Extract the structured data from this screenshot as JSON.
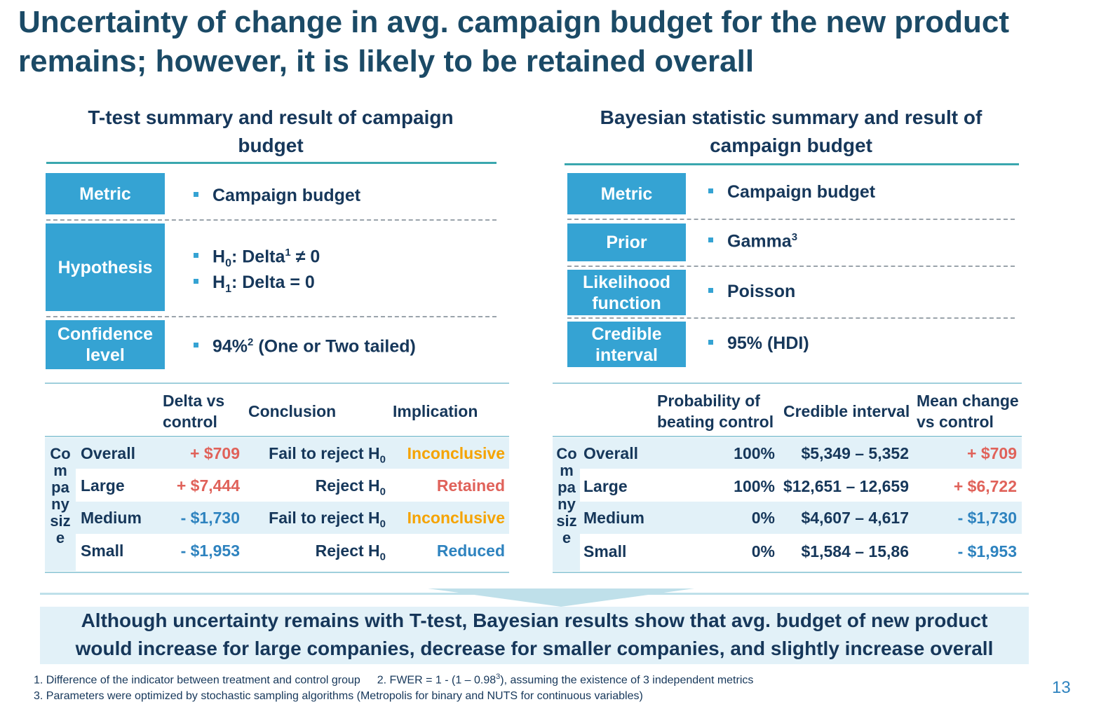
{
  "title_line1": "Uncertainty of change in avg. campaign budget for the new product",
  "title_line2": "remains; however, it is likely to be retained overall",
  "left": {
    "title_line1": "T-test summary and result of campaign",
    "title_line2": "budget",
    "metric_label": "Metric",
    "metric_value": "Campaign budget",
    "hypothesis_label": "Hypothesis",
    "h0": {
      "h": "H",
      "sub": "0",
      "mid": ": Delta",
      "sup": "1",
      "rest": " ≠ 0"
    },
    "h1": {
      "h": "H",
      "sub": "1",
      "rest": ": Delta = 0"
    },
    "conf_label_1": "Confidence",
    "conf_label_2": "level",
    "conf_value": {
      "pre": "94%",
      "sup": "2",
      "post": " (One or Two tailed)"
    },
    "table": {
      "col1_l1": "Delta vs",
      "col1_l2": "control",
      "col2": "Conclusion",
      "col3": "Implication",
      "group_label": [
        "Co",
        "m",
        "pa",
        "ny",
        "siz",
        "e"
      ],
      "rows": [
        {
          "name": "Overall",
          "delta": "+ $709",
          "conclusion": "Fail to reject H",
          "sub": "0",
          "implication": "Inconclusive"
        },
        {
          "name": "Large",
          "delta": "+ $7,444",
          "conclusion": "Reject H",
          "sub": "0",
          "implication": "Retained"
        },
        {
          "name": "Medium",
          "delta": "- $1,730",
          "conclusion": "Fail to reject H",
          "sub": "0",
          "implication": "Inconclusive"
        },
        {
          "name": "Small",
          "delta": "- $1,953",
          "conclusion": "Reject H",
          "sub": "0",
          "implication": "Reduced"
        }
      ]
    }
  },
  "right": {
    "title_line1": "Bayesian statistic summary and result of",
    "title_line2": "campaign budget",
    "metric_label": "Metric",
    "metric_value": "Campaign budget",
    "prior_label": "Prior",
    "prior_value": "Gamma",
    "prior_sup": "3",
    "lik_label_1": "Likelihood",
    "lik_label_2": "function",
    "lik_value": "Poisson",
    "cred_label_1": "Credible",
    "cred_label_2": "interval",
    "cred_value": "95% (HDI)",
    "table": {
      "col1_l1": "Probability of",
      "col1_l2": "beating control",
      "col2": "Credible interval",
      "col3_l1": "Mean change",
      "col3_l2": "vs control",
      "group_label": [
        "Co",
        "m",
        "pa",
        "ny",
        "siz",
        "e"
      ],
      "rows": [
        {
          "name": "Overall",
          "prob": "100%",
          "interval": "$5,349 – 5,352",
          "mean": "+ $709"
        },
        {
          "name": "Large",
          "prob": "100%",
          "interval": "$12,651 – 12,659",
          "mean": "+ $6,722"
        },
        {
          "name": "Medium",
          "prob": "0%",
          "interval": "$4,607 – 4,617",
          "mean": "- $1,730"
        },
        {
          "name": "Small",
          "prob": "0%",
          "interval": "$1,584 – 15,86",
          "mean": "- $1,953"
        }
      ]
    }
  },
  "conclusion_line1": "Although uncertainty remains with T-test, Bayesian results show that avg. budget of new product",
  "conclusion_line2": "would increase for large companies, decrease for smaller companies, and slightly increase overall",
  "footnotes": {
    "n1": "1. Difference of the indicator between treatment and control group",
    "n2_pre": "2. FWER = 1 - (1 – 0.98",
    "n2_sup": "3",
    "n2_post": "), assuming the existence of 3 independent metrics",
    "n3": "3. Parameters were optimized by stochastic sampling algorithms (Metropolis for binary and NUTS for continuous variables)"
  },
  "page_number": "13",
  "colors": {
    "accent_box": "#35a3d3",
    "teal_line": "#3aa7ae",
    "positive": "#e0625a",
    "negative": "#2e83bf",
    "inconclusive": "#f5a300",
    "band": "#e2f1f8"
  }
}
